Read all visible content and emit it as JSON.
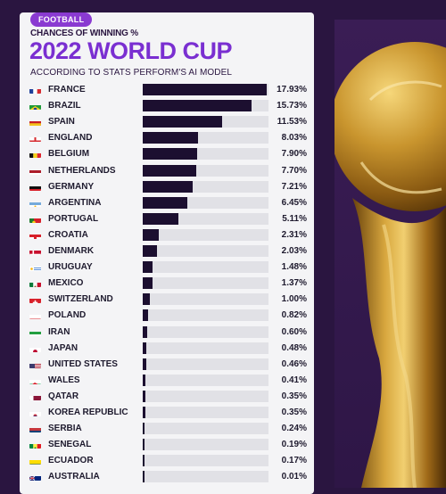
{
  "badge": "FOOTBALL",
  "kicker": "CHANCES OF WINNING %",
  "colors": {
    "bar": "#1c0f30",
    "track": "#e1e1e6",
    "accent": "#7a2fd1",
    "badge": "#8a3ad1",
    "background": "#2a1540"
  },
  "chart_data": {
    "type": "bar",
    "orientation": "horizontal",
    "title": "2022 WORLD CUP",
    "subtitle": "ACCORDING TO STATS PERFORM'S AI MODEL",
    "xlabel": "",
    "ylabel": "",
    "grid": false,
    "xlim": [
      0,
      20
    ],
    "categories": [
      "FRANCE",
      "BRAZIL",
      "SPAIN",
      "ENGLAND",
      "BELGIUM",
      "NETHERLANDS",
      "GERMANY",
      "ARGENTINA",
      "PORTUGAL",
      "CROATIA",
      "DENMARK",
      "URUGUAY",
      "MEXICO",
      "SWITZERLAND",
      "POLAND",
      "IRAN",
      "JAPAN",
      "UNITED STATES",
      "WALES",
      "QATAR",
      "KOREA REPUBLIC",
      "SERBIA",
      "SENEGAL",
      "ECUADOR",
      "AUSTRALIA"
    ],
    "values": [
      17.93,
      15.73,
      11.53,
      8.03,
      7.9,
      7.7,
      7.21,
      6.45,
      5.11,
      2.31,
      2.03,
      1.48,
      1.37,
      1.0,
      0.82,
      0.6,
      0.48,
      0.46,
      0.41,
      0.35,
      0.35,
      0.24,
      0.19,
      0.17,
      0.01
    ],
    "labels": [
      "17.93%",
      "15.73%",
      "11.53%",
      "8.03%",
      "7.90%",
      "7.70%",
      "7.21%",
      "6.45%",
      "5.11%",
      "2.31%",
      "2.03%",
      "1.48%",
      "1.37%",
      "1.00%",
      "0.82%",
      "0.60%",
      "0.48%",
      "0.46%",
      "0.41%",
      "0.35%",
      "0.35%",
      "0.24%",
      "0.19%",
      "0.17%",
      "0.01%"
    ],
    "flag_icons": [
      "france-flag-icon",
      "brazil-flag-icon",
      "spain-flag-icon",
      "england-flag-icon",
      "belgium-flag-icon",
      "netherlands-flag-icon",
      "germany-flag-icon",
      "argentina-flag-icon",
      "portugal-flag-icon",
      "croatia-flag-icon",
      "denmark-flag-icon",
      "uruguay-flag-icon",
      "mexico-flag-icon",
      "switzerland-flag-icon",
      "poland-flag-icon",
      "iran-flag-icon",
      "japan-flag-icon",
      "united-states-flag-icon",
      "wales-flag-icon",
      "qatar-flag-icon",
      "korea-republic-flag-icon",
      "serbia-flag-icon",
      "senegal-flag-icon",
      "ecuador-flag-icon",
      "australia-flag-icon"
    ]
  },
  "trophy_icon": "world-cup-trophy-icon"
}
